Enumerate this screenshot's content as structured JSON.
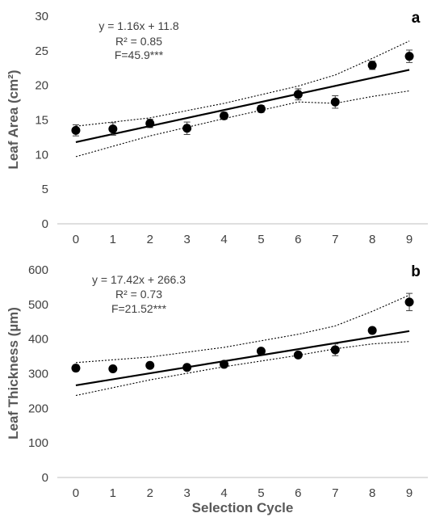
{
  "chart_data": [
    {
      "type": "scatter",
      "panel_label": "a",
      "ylabel": "Leaf Area (cm²)",
      "xlabel": "",
      "x_ticks": [
        "0",
        "1",
        "2",
        "3",
        "4",
        "5",
        "6",
        "7",
        "8",
        "9"
      ],
      "y_ticks": [
        "0",
        "5",
        "10",
        "15",
        "20",
        "25",
        "30"
      ],
      "ylim": [
        0,
        30
      ],
      "xlim": [
        -0.5,
        9.5
      ],
      "grid": false,
      "points": {
        "x": [
          0,
          1,
          2,
          3,
          4,
          5,
          6,
          7,
          8,
          9
        ],
        "y": [
          13.5,
          13.7,
          14.5,
          13.8,
          15.6,
          16.6,
          18.7,
          17.6,
          22.9,
          24.2
        ],
        "error": [
          0.8,
          0.9,
          0.6,
          0.9,
          0.5,
          0.5,
          0.8,
          0.9,
          0.6,
          0.9
        ]
      },
      "trend": {
        "slope": 1.16,
        "intercept": 11.8
      },
      "upper_band": {
        "x": [
          0,
          2,
          4,
          6,
          7,
          8,
          9
        ],
        "y": [
          14.1,
          15.3,
          17.4,
          19.9,
          21.5,
          23.9,
          26.4
        ]
      },
      "lower_band": {
        "x": [
          0,
          2,
          4,
          6,
          7,
          8,
          9
        ],
        "y": [
          9.7,
          12.7,
          15.2,
          17.6,
          17.4,
          18.4,
          19.2
        ]
      },
      "annotations": [
        "y = 1.16x + 11.8",
        "R² = 0.85",
        "F=45.9***"
      ]
    },
    {
      "type": "scatter",
      "panel_label": "b",
      "ylabel": "Leaf Thickness (µm)",
      "xlabel": "Selection  Cycle",
      "x_ticks": [
        "0",
        "1",
        "2",
        "3",
        "4",
        "5",
        "6",
        "7",
        "8",
        "9"
      ],
      "y_ticks": [
        "0",
        "100",
        "200",
        "300",
        "400",
        "500",
        "600"
      ],
      "ylim": [
        0,
        600
      ],
      "xlim": [
        -0.5,
        9.5
      ],
      "grid": false,
      "points": {
        "x": [
          0,
          1,
          2,
          3,
          4,
          5,
          6,
          7,
          8,
          9
        ],
        "y": [
          316,
          314,
          324,
          318,
          327,
          365,
          354,
          369,
          425,
          507
        ],
        "error": [
          9,
          7,
          7,
          8,
          7,
          8,
          8,
          17,
          8,
          25
        ]
      },
      "trend": {
        "slope": 17.42,
        "intercept": 266.3
      },
      "upper_band": {
        "x": [
          0,
          2,
          4,
          6,
          7,
          8,
          9
        ],
        "y": [
          332,
          348,
          376,
          414,
          438,
          480,
          527
        ]
      },
      "lower_band": {
        "x": [
          0,
          2,
          4,
          6,
          7,
          8,
          9
        ],
        "y": [
          237,
          282,
          320,
          353,
          372,
          386,
          393
        ]
      },
      "annotations": [
        "y = 17.42x + 266.3",
        "R² = 0.73",
        "F=21.52***"
      ]
    }
  ]
}
